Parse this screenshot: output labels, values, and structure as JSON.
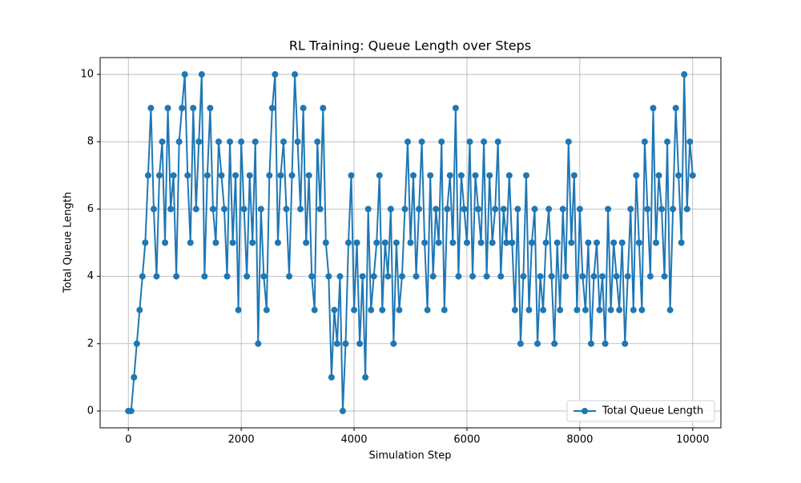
{
  "chart_data": {
    "type": "line",
    "title": "RL Training: Queue Length over Steps",
    "x_label": "Simulation Step",
    "y_label": "Total Queue Length",
    "x": [
      0,
      50,
      100,
      150,
      200,
      250,
      300,
      350,
      400,
      450,
      500,
      550,
      600,
      650,
      700,
      750,
      800,
      850,
      900,
      950,
      1000,
      1050,
      1100,
      1150,
      1200,
      1250,
      1300,
      1350,
      1400,
      1450,
      1500,
      1550,
      1600,
      1650,
      1700,
      1750,
      1800,
      1850,
      1900,
      1950,
      2000,
      2050,
      2100,
      2150,
      2200,
      2250,
      2300,
      2350,
      2400,
      2450,
      2500,
      2550,
      2600,
      2650,
      2700,
      2750,
      2800,
      2850,
      2900,
      2950,
      3000,
      3050,
      3100,
      3150,
      3200,
      3250,
      3300,
      3350,
      3400,
      3450,
      3500,
      3550,
      3600,
      3650,
      3700,
      3750,
      3800,
      3850,
      3900,
      3950,
      4000,
      4050,
      4100,
      4150,
      4200,
      4250,
      4300,
      4350,
      4400,
      4450,
      4500,
      4550,
      4600,
      4650,
      4700,
      4750,
      4800,
      4850,
      4900,
      4950,
      5000,
      5050,
      5100,
      5150,
      5200,
      5250,
      5300,
      5350,
      5400,
      5450,
      5500,
      5550,
      5600,
      5650,
      5700,
      5750,
      5800,
      5850,
      5900,
      5950,
      6000,
      6050,
      6100,
      6150,
      6200,
      6250,
      6300,
      6350,
      6400,
      6450,
      6500,
      6550,
      6600,
      6650,
      6700,
      6750,
      6800,
      6850,
      6900,
      6950,
      7000,
      7050,
      7100,
      7150,
      7200,
      7250,
      7300,
      7350,
      7400,
      7450,
      7500,
      7550,
      7600,
      7650,
      7700,
      7750,
      7800,
      7850,
      7900,
      7950,
      8000,
      8050,
      8100,
      8150,
      8200,
      8250,
      8300,
      8350,
      8400,
      8450,
      8500,
      8550,
      8600,
      8650,
      8700,
      8750,
      8800,
      8850,
      8900,
      8950,
      9000,
      9050,
      9100,
      9150,
      9200,
      9250,
      9300,
      9350,
      9400,
      9450,
      9500,
      9550,
      9600,
      9650,
      9700,
      9750,
      9800,
      9850,
      9900,
      9950,
      10000
    ],
    "series": [
      {
        "name": "Total Queue Length",
        "color": "#1f77b4",
        "values": [
          0,
          0,
          1,
          2,
          3,
          4,
          5,
          7,
          9,
          6,
          4,
          7,
          8,
          5,
          9,
          6,
          7,
          4,
          8,
          9,
          10,
          7,
          5,
          9,
          6,
          8,
          10,
          4,
          7,
          9,
          6,
          5,
          8,
          7,
          6,
          4,
          8,
          5,
          7,
          3,
          8,
          6,
          4,
          7,
          5,
          8,
          2,
          6,
          4,
          3,
          7,
          9,
          10,
          5,
          7,
          8,
          6,
          4,
          7,
          10,
          8,
          6,
          9,
          5,
          7,
          4,
          3,
          8,
          6,
          9,
          5,
          4,
          1,
          3,
          2,
          4,
          0,
          2,
          5,
          7,
          3,
          5,
          2,
          4,
          1,
          6,
          3,
          4,
          5,
          7,
          3,
          5,
          4,
          6,
          2,
          5,
          3,
          4,
          6,
          8,
          5,
          7,
          4,
          6,
          8,
          5,
          3,
          7,
          4,
          6,
          5,
          8,
          3,
          6,
          7,
          5,
          9,
          4,
          7,
          6,
          5,
          8,
          4,
          7,
          6,
          5,
          8,
          4,
          7,
          5,
          6,
          8,
          4,
          6,
          5,
          7,
          5,
          3,
          6,
          2,
          4,
          7,
          3,
          5,
          6,
          2,
          4,
          3,
          5,
          6,
          4,
          2,
          5,
          3,
          6,
          4,
          8,
          5,
          7,
          3,
          6,
          4,
          3,
          5,
          2,
          4,
          5,
          3,
          4,
          2,
          6,
          3,
          5,
          4,
          3,
          5,
          2,
          4,
          6,
          3,
          7,
          5,
          3,
          8,
          6,
          4,
          9,
          5,
          7,
          6,
          4,
          8,
          3,
          6,
          9,
          7,
          5,
          10,
          6,
          8,
          7
        ]
      }
    ],
    "xlim": [
      -500,
      10500
    ],
    "ylim": [
      -0.5,
      10.5
    ],
    "xticks": [
      0,
      2000,
      4000,
      6000,
      8000,
      10000
    ],
    "yticks": [
      0,
      2,
      4,
      6,
      8,
      10
    ],
    "grid": true,
    "legend": "lower right"
  }
}
